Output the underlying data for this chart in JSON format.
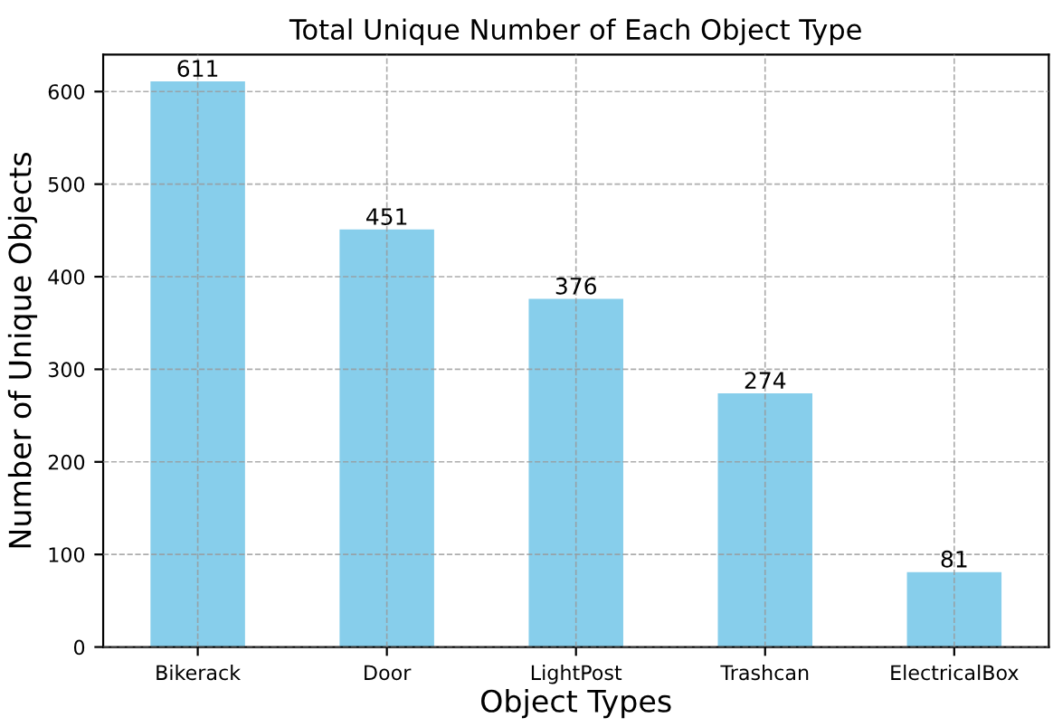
{
  "chart_data": {
    "type": "bar",
    "title": "Total Unique Number of Each Object Type",
    "xlabel": "Object Types",
    "ylabel": "Number of Unique Objects",
    "categories": [
      "Bikerack",
      "Door",
      "LightPost",
      "Trashcan",
      "ElectricalBox"
    ],
    "values": [
      611,
      451,
      376,
      274,
      81
    ],
    "color": "#87ceeb",
    "ylim": [
      0,
      640
    ],
    "yticks": [
      0,
      100,
      200,
      300,
      400,
      500,
      600
    ],
    "grid": true,
    "data_labels": true
  }
}
